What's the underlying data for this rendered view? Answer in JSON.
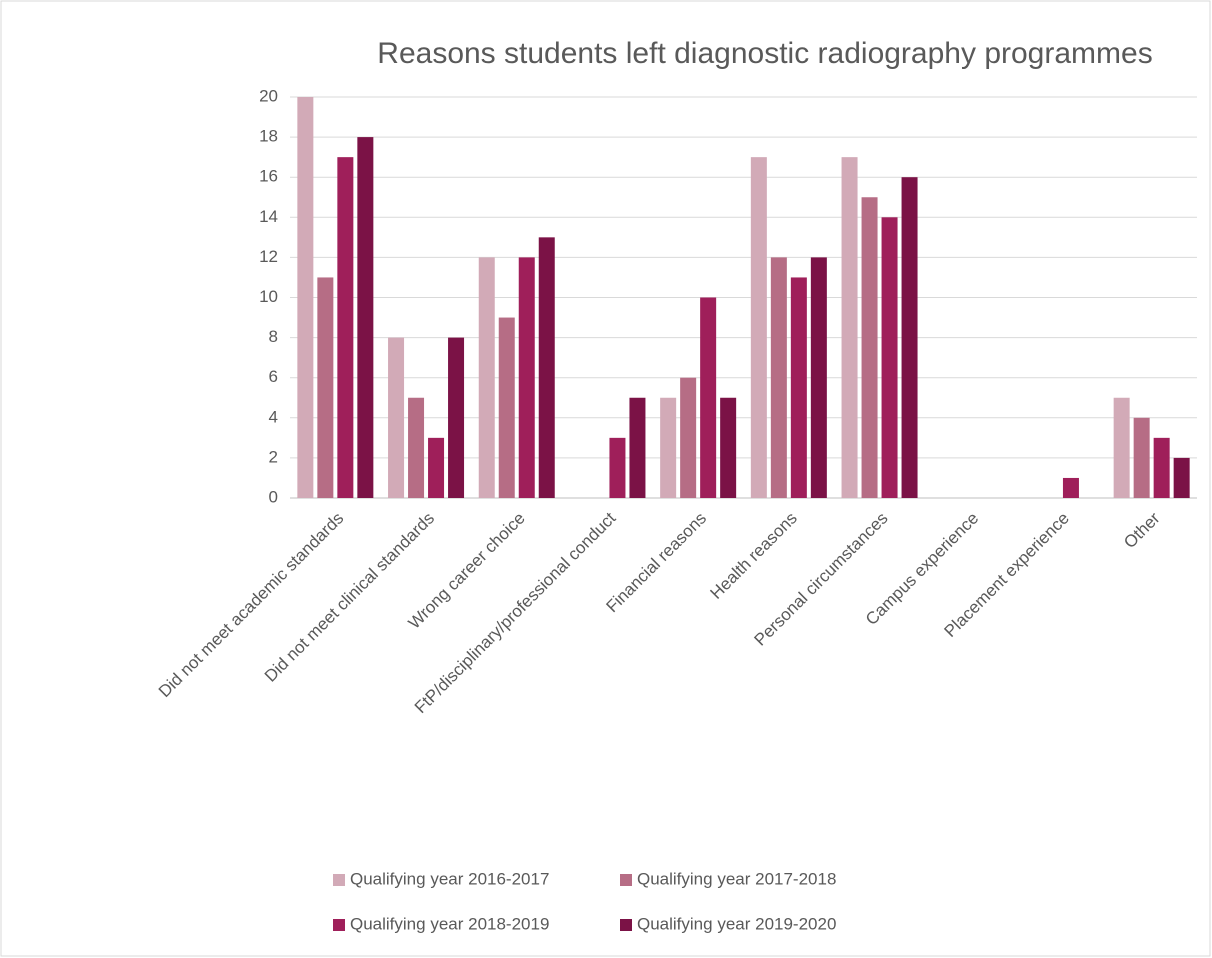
{
  "chart_data": {
    "type": "bar",
    "title": "Reasons students left diagnostic radiography programmes",
    "categories": [
      "Did not meet academic standards",
      "Did not meet clinical standards",
      "Wrong career choice",
      "FtP/disciplinary/professional conduct",
      "Financial reasons",
      "Health reasons",
      "Personal circumstances",
      "Campus experience",
      "Placement experience",
      "Other"
    ],
    "series": [
      {
        "name": "Qualifying year 2016-2017",
        "color": "#d2aab7",
        "values": [
          20,
          8,
          12,
          0,
          5,
          17,
          17,
          0,
          0,
          5
        ]
      },
      {
        "name": "Qualifying year 2017-2018",
        "color": "#b66d85",
        "values": [
          11,
          5,
          9,
          0,
          6,
          12,
          15,
          0,
          0,
          4
        ]
      },
      {
        "name": "Qualifying year 2018-2019",
        "color": "#9f1f5a",
        "values": [
          17,
          3,
          12,
          3,
          10,
          11,
          14,
          0,
          1,
          3
        ]
      },
      {
        "name": "Qualifying year 2019-2020",
        "color": "#7b1246",
        "values": [
          18,
          8,
          13,
          5,
          5,
          12,
          16,
          0,
          0,
          2
        ]
      }
    ],
    "ylim": [
      0,
      20
    ],
    "yticks": [
      0,
      2,
      4,
      6,
      8,
      10,
      12,
      14,
      16,
      18,
      20
    ],
    "grid": true,
    "legend": "bottom"
  }
}
